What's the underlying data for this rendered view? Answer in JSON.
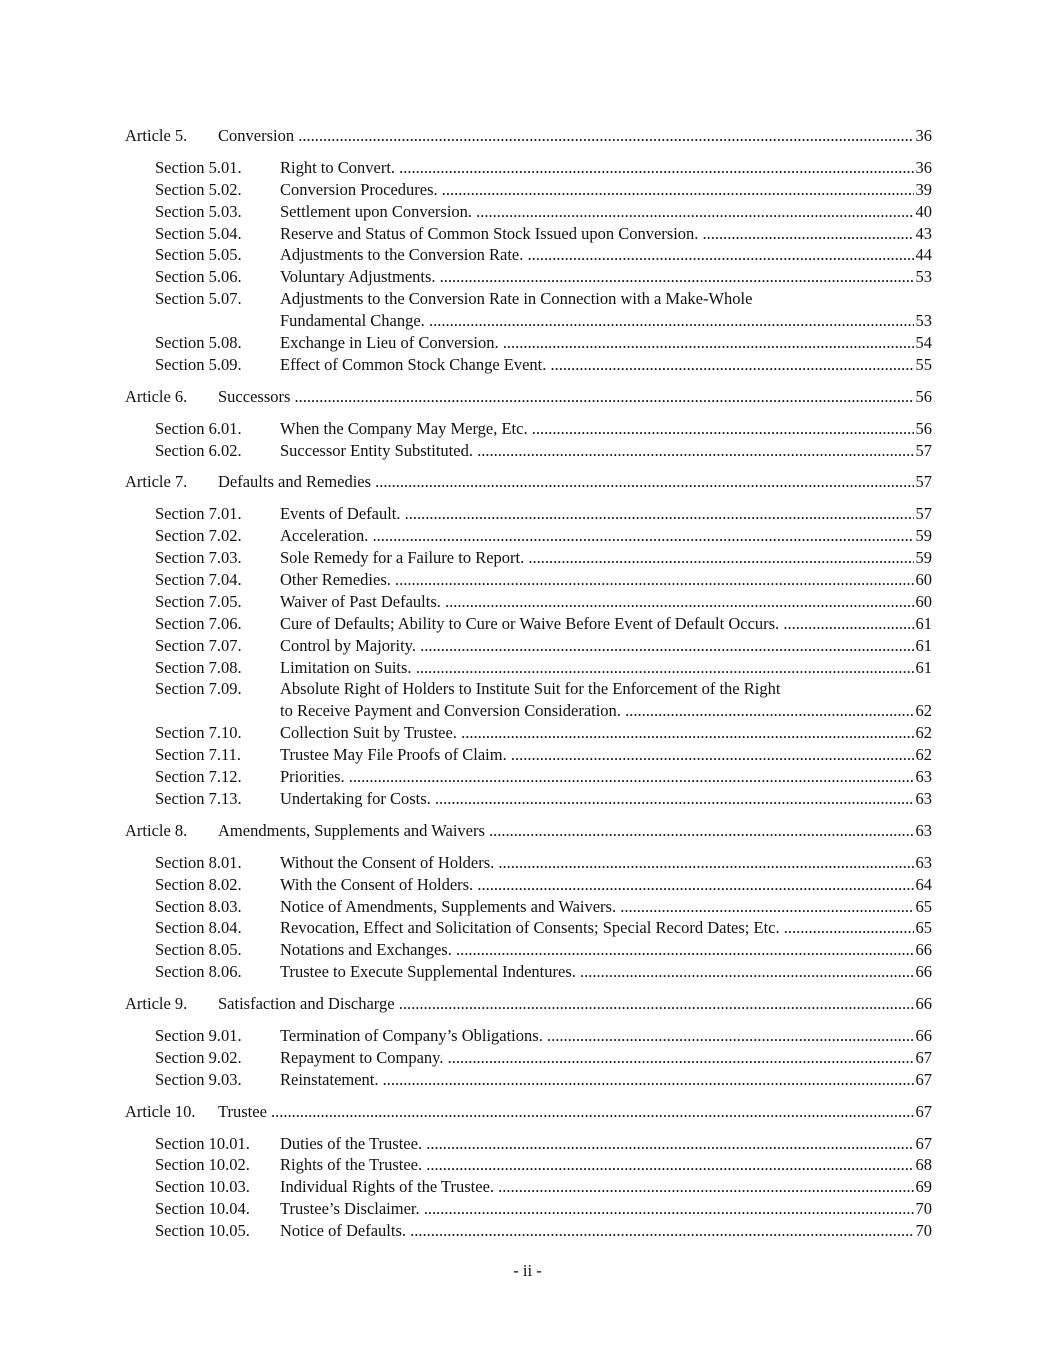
{
  "articles": [
    {
      "label": "Article 5.",
      "title": "Conversion",
      "page": "36",
      "sections": [
        {
          "label": "Section 5.01.",
          "lines": [
            "Right to Convert."
          ],
          "page": "36"
        },
        {
          "label": "Section 5.02.",
          "lines": [
            "Conversion Procedures."
          ],
          "page": "39"
        },
        {
          "label": "Section 5.03.",
          "lines": [
            "Settlement upon Conversion."
          ],
          "page": "40"
        },
        {
          "label": "Section 5.04.",
          "lines": [
            "Reserve and Status of Common Stock Issued upon Conversion."
          ],
          "page": "43"
        },
        {
          "label": "Section 5.05.",
          "lines": [
            "Adjustments to the Conversion Rate."
          ],
          "page": "44"
        },
        {
          "label": "Section 5.06.",
          "lines": [
            "Voluntary Adjustments."
          ],
          "page": "53"
        },
        {
          "label": "Section 5.07.",
          "lines": [
            "Adjustments to the Conversion Rate in Connection with a Make-Whole",
            "Fundamental Change."
          ],
          "page": "53"
        },
        {
          "label": "Section 5.08.",
          "lines": [
            "Exchange in Lieu of Conversion."
          ],
          "page": "54"
        },
        {
          "label": "Section 5.09.",
          "lines": [
            "Effect of Common Stock Change Event."
          ],
          "page": "55"
        }
      ]
    },
    {
      "label": "Article 6.",
      "title": "Successors",
      "page": "56",
      "sections": [
        {
          "label": "Section 6.01.",
          "lines": [
            "When the Company May Merge, Etc."
          ],
          "page": "56"
        },
        {
          "label": "Section 6.02.",
          "lines": [
            "Successor Entity Substituted."
          ],
          "page": "57"
        }
      ]
    },
    {
      "label": "Article 7.",
      "title": "Defaults and Remedies",
      "page": "57",
      "sections": [
        {
          "label": "Section 7.01.",
          "lines": [
            "Events of Default."
          ],
          "page": "57"
        },
        {
          "label": "Section 7.02.",
          "lines": [
            "Acceleration."
          ],
          "page": "59"
        },
        {
          "label": "Section 7.03.",
          "lines": [
            "Sole Remedy for a Failure to Report."
          ],
          "page": "59"
        },
        {
          "label": "Section 7.04.",
          "lines": [
            "Other Remedies."
          ],
          "page": "60"
        },
        {
          "label": "Section 7.05.",
          "lines": [
            "Waiver of Past Defaults."
          ],
          "page": "60"
        },
        {
          "label": "Section 7.06.",
          "lines": [
            "Cure of Defaults; Ability to Cure or Waive Before Event of Default Occurs."
          ],
          "page": "61"
        },
        {
          "label": "Section 7.07.",
          "lines": [
            "Control by Majority."
          ],
          "page": "61"
        },
        {
          "label": "Section 7.08.",
          "lines": [
            "Limitation on Suits."
          ],
          "page": "61"
        },
        {
          "label": "Section 7.09.",
          "lines": [
            "Absolute Right of Holders to Institute Suit for the Enforcement of the Right",
            "to Receive Payment and Conversion Consideration."
          ],
          "page": "62"
        },
        {
          "label": "Section 7.10.",
          "lines": [
            "Collection Suit by Trustee."
          ],
          "page": "62"
        },
        {
          "label": "Section 7.11.",
          "lines": [
            "Trustee May File Proofs of Claim."
          ],
          "page": "62"
        },
        {
          "label": "Section 7.12.",
          "lines": [
            "Priorities."
          ],
          "page": "63"
        },
        {
          "label": "Section 7.13.",
          "lines": [
            "Undertaking for Costs."
          ],
          "page": "63"
        }
      ]
    },
    {
      "label": "Article 8.",
      "title": "Amendments, Supplements and Waivers",
      "page": "63",
      "sections": [
        {
          "label": "Section 8.01.",
          "lines": [
            "Without the Consent of Holders."
          ],
          "page": "63"
        },
        {
          "label": "Section 8.02.",
          "lines": [
            "With the Consent of Holders."
          ],
          "page": "64"
        },
        {
          "label": "Section 8.03.",
          "lines": [
            "Notice of Amendments, Supplements and Waivers."
          ],
          "page": "65"
        },
        {
          "label": "Section 8.04.",
          "lines": [
            "Revocation, Effect and Solicitation of Consents; Special Record Dates; Etc."
          ],
          "page": "65"
        },
        {
          "label": "Section 8.05.",
          "lines": [
            "Notations and Exchanges."
          ],
          "page": "66"
        },
        {
          "label": "Section 8.06.",
          "lines": [
            "Trustee to Execute Supplemental Indentures."
          ],
          "page": "66"
        }
      ]
    },
    {
      "label": "Article 9.",
      "title": "Satisfaction and Discharge",
      "page": "66",
      "sections": [
        {
          "label": "Section 9.01.",
          "lines": [
            "Termination of Company’s Obligations."
          ],
          "page": "66"
        },
        {
          "label": "Section 9.02.",
          "lines": [
            "Repayment to Company."
          ],
          "page": "67"
        },
        {
          "label": "Section 9.03.",
          "lines": [
            "Reinstatement."
          ],
          "page": "67"
        }
      ]
    },
    {
      "label": "Article 10.",
      "title": "Trustee",
      "page": "67",
      "sections": [
        {
          "label": "Section 10.01.",
          "lines": [
            "Duties of the Trustee."
          ],
          "page": "67"
        },
        {
          "label": "Section 10.02.",
          "lines": [
            "Rights of the Trustee."
          ],
          "page": "68"
        },
        {
          "label": "Section 10.03.",
          "lines": [
            "Individual Rights of the Trustee."
          ],
          "page": "69"
        },
        {
          "label": "Section 10.04.",
          "lines": [
            "Trustee’s Disclaimer."
          ],
          "page": "70"
        },
        {
          "label": "Section 10.05.",
          "lines": [
            "Notice of Defaults."
          ],
          "page": "70"
        }
      ]
    }
  ],
  "footer": {
    "page_label": "- ii -"
  }
}
